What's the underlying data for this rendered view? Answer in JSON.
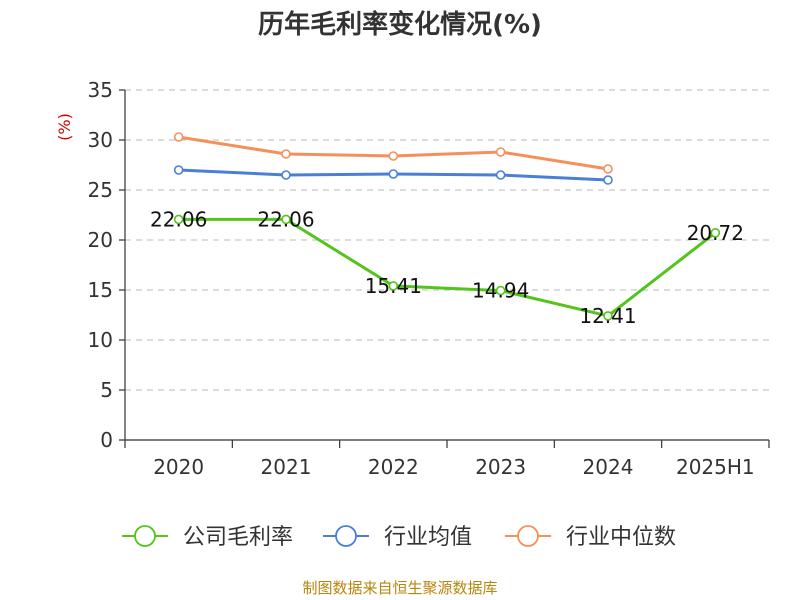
{
  "chart_data": {
    "type": "line",
    "title": "历年毛利率变化情况(%)",
    "ylabel": "(%)",
    "xlabel": "",
    "categories": [
      "2020",
      "2021",
      "2022",
      "2023",
      "2024",
      "2025H1"
    ],
    "ylim": [
      0,
      35
    ],
    "yticks": [
      0,
      5,
      10,
      15,
      20,
      25,
      30,
      35
    ],
    "grid": true,
    "legend_position": "bottom",
    "series": [
      {
        "name": "公司毛利率",
        "color": "#52c41a",
        "values": [
          22.06,
          22.06,
          15.41,
          14.94,
          12.41,
          20.72
        ],
        "labels": [
          "22.06",
          "22.06",
          "15.41",
          "14.94",
          "12.41",
          "20.72"
        ]
      },
      {
        "name": "行业均值",
        "color": "#4a7fd8",
        "values": [
          27.0,
          26.5,
          26.6,
          26.5,
          26.0,
          null
        ]
      },
      {
        "name": "行业中位数",
        "color": "#f5905a",
        "values": [
          30.3,
          28.6,
          28.4,
          28.8,
          27.1,
          null
        ]
      }
    ]
  },
  "source": "制图数据来自恒生聚源数据库"
}
